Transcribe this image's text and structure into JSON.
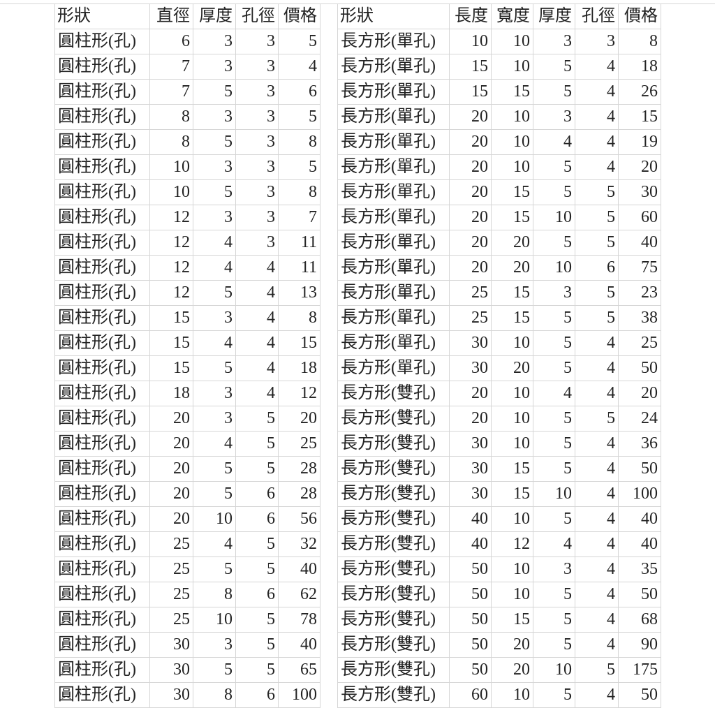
{
  "left_table": {
    "headers": [
      "形狀",
      "直徑",
      "厚度",
      "孔徑",
      "價格"
    ],
    "rows": [
      [
        "圓柱形(孔)",
        6,
        3,
        3,
        5
      ],
      [
        "圓柱形(孔)",
        7,
        3,
        3,
        4
      ],
      [
        "圓柱形(孔)",
        7,
        5,
        3,
        6
      ],
      [
        "圓柱形(孔)",
        8,
        3,
        3,
        5
      ],
      [
        "圓柱形(孔)",
        8,
        5,
        3,
        8
      ],
      [
        "圓柱形(孔)",
        10,
        3,
        3,
        5
      ],
      [
        "圓柱形(孔)",
        10,
        5,
        3,
        8
      ],
      [
        "圓柱形(孔)",
        12,
        3,
        3,
        7
      ],
      [
        "圓柱形(孔)",
        12,
        4,
        3,
        11
      ],
      [
        "圓柱形(孔)",
        12,
        4,
        4,
        11
      ],
      [
        "圓柱形(孔)",
        12,
        5,
        4,
        13
      ],
      [
        "圓柱形(孔)",
        15,
        3,
        4,
        8
      ],
      [
        "圓柱形(孔)",
        15,
        4,
        4,
        15
      ],
      [
        "圓柱形(孔)",
        15,
        5,
        4,
        18
      ],
      [
        "圓柱形(孔)",
        18,
        3,
        4,
        12
      ],
      [
        "圓柱形(孔)",
        20,
        3,
        5,
        20
      ],
      [
        "圓柱形(孔)",
        20,
        4,
        5,
        25
      ],
      [
        "圓柱形(孔)",
        20,
        5,
        5,
        28
      ],
      [
        "圓柱形(孔)",
        20,
        5,
        6,
        28
      ],
      [
        "圓柱形(孔)",
        20,
        10,
        6,
        56
      ],
      [
        "圓柱形(孔)",
        25,
        4,
        5,
        32
      ],
      [
        "圓柱形(孔)",
        25,
        5,
        5,
        40
      ],
      [
        "圓柱形(孔)",
        25,
        8,
        6,
        62
      ],
      [
        "圓柱形(孔)",
        25,
        10,
        5,
        78
      ],
      [
        "圓柱形(孔)",
        30,
        3,
        5,
        40
      ],
      [
        "圓柱形(孔)",
        30,
        5,
        5,
        65
      ],
      [
        "圓柱形(孔)",
        30,
        8,
        6,
        100
      ]
    ]
  },
  "right_table": {
    "headers": [
      "形狀",
      "長度",
      "寬度",
      "厚度",
      "孔徑",
      "價格"
    ],
    "rows": [
      [
        "長方形(單孔)",
        10,
        10,
        3,
        3,
        8
      ],
      [
        "長方形(單孔)",
        15,
        10,
        5,
        4,
        18
      ],
      [
        "長方形(單孔)",
        15,
        15,
        5,
        4,
        26
      ],
      [
        "長方形(單孔)",
        20,
        10,
        3,
        4,
        15
      ],
      [
        "長方形(單孔)",
        20,
        10,
        4,
        4,
        19
      ],
      [
        "長方形(單孔)",
        20,
        10,
        5,
        4,
        20
      ],
      [
        "長方形(單孔)",
        20,
        15,
        5,
        5,
        30
      ],
      [
        "長方形(單孔)",
        20,
        15,
        10,
        5,
        60
      ],
      [
        "長方形(單孔)",
        20,
        20,
        5,
        5,
        40
      ],
      [
        "長方形(單孔)",
        20,
        20,
        10,
        6,
        75
      ],
      [
        "長方形(單孔)",
        25,
        15,
        3,
        5,
        23
      ],
      [
        "長方形(單孔)",
        25,
        15,
        5,
        5,
        38
      ],
      [
        "長方形(單孔)",
        30,
        10,
        5,
        4,
        25
      ],
      [
        "長方形(單孔)",
        30,
        20,
        5,
        4,
        50
      ],
      [
        "長方形(雙孔)",
        20,
        10,
        4,
        4,
        20
      ],
      [
        "長方形(雙孔)",
        20,
        10,
        5,
        5,
        24
      ],
      [
        "長方形(雙孔)",
        30,
        10,
        5,
        4,
        36
      ],
      [
        "長方形(雙孔)",
        30,
        15,
        5,
        4,
        50
      ],
      [
        "長方形(雙孔)",
        30,
        15,
        10,
        4,
        100
      ],
      [
        "長方形(雙孔)",
        40,
        10,
        5,
        4,
        40
      ],
      [
        "長方形(雙孔)",
        40,
        12,
        4,
        4,
        40
      ],
      [
        "長方形(雙孔)",
        50,
        10,
        3,
        4,
        35
      ],
      [
        "長方形(雙孔)",
        50,
        10,
        5,
        4,
        50
      ],
      [
        "長方形(雙孔)",
        50,
        15,
        5,
        4,
        68
      ],
      [
        "長方形(雙孔)",
        50,
        20,
        5,
        4,
        90
      ],
      [
        "長方形(雙孔)",
        50,
        20,
        10,
        5,
        175
      ],
      [
        "長方形(雙孔)",
        60,
        10,
        5,
        4,
        50
      ]
    ]
  }
}
